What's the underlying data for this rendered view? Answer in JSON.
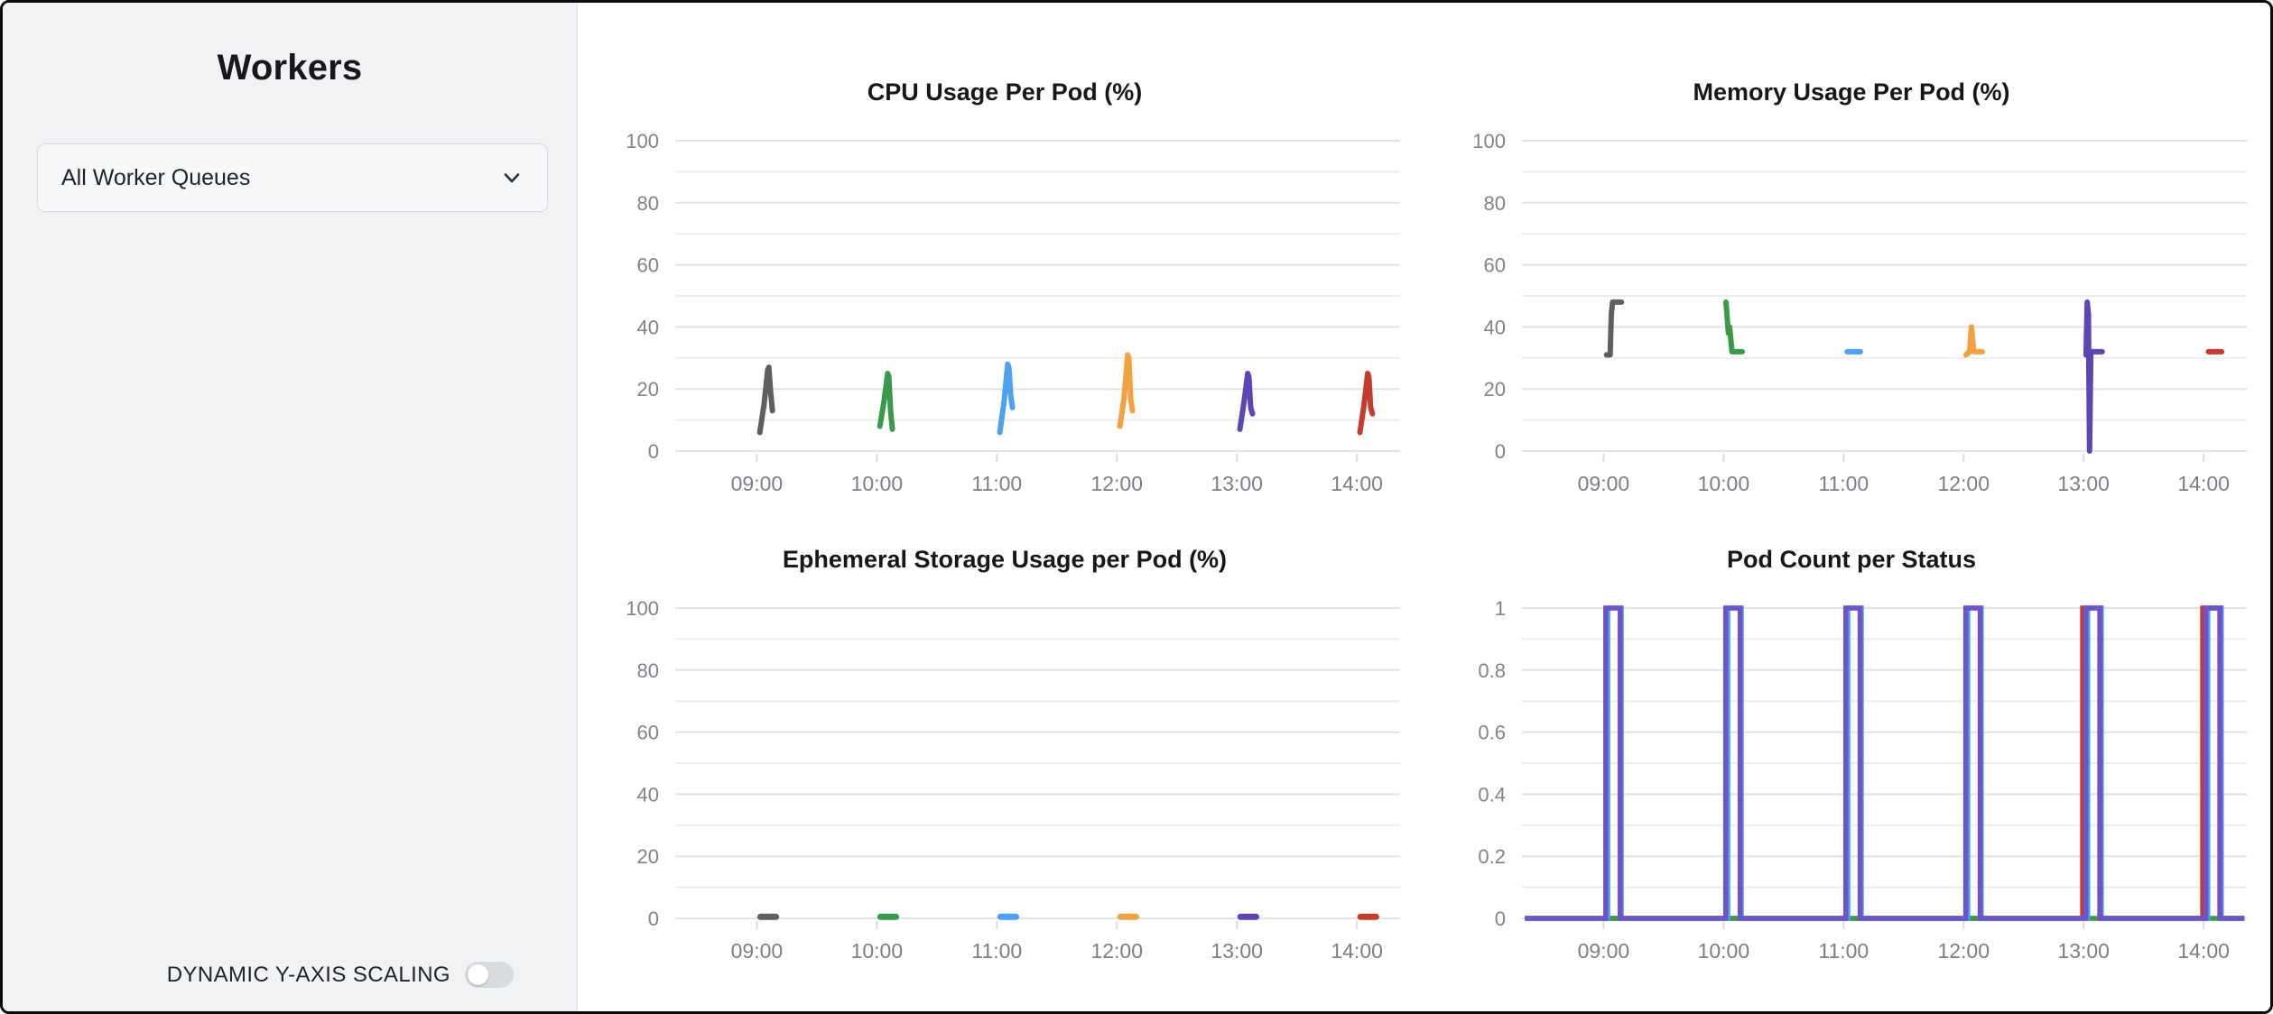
{
  "sidebar": {
    "title": "Workers",
    "queue_selector": {
      "value": "All Worker Queues",
      "icon": "chevron-down-icon"
    },
    "toggle": {
      "label": "DYNAMIC Y-AXIS SCALING",
      "state": "off"
    }
  },
  "colors": {
    "sidebar_bg": "#f1f2f4",
    "window_border": "#0a0a0a",
    "grid_major": "#e2e2e8",
    "grid_minor": "#ededf1",
    "tick_label": "#82838a",
    "title_text": "#15171b",
    "pod_gray": "#5e5f63",
    "pod_green": "#3a9a4a",
    "pod_blue": "#4aa2f0",
    "pod_orange": "#f0a243",
    "pod_purple": "#5d46b4",
    "pod_red": "#c43c2d",
    "status_purple": "#6d55c8"
  },
  "chart_data": [
    {
      "type": "line",
      "title": "CPU Usage Per Pod (%)",
      "ylim": [
        0,
        100
      ],
      "grid_step": 10,
      "y_ticks": [
        "0",
        "20",
        "40",
        "60",
        "80",
        "100"
      ],
      "x_domain": [
        8.32,
        14.36
      ],
      "x_tick_labels": [
        "09:00",
        "10:00",
        "11:00",
        "12:00",
        "13:00",
        "14:00"
      ],
      "x_tick_hours": [
        9,
        10,
        11,
        12,
        13,
        14
      ],
      "legend": "none",
      "series": [
        {
          "name": "pod-gray",
          "color": "#5e5f63",
          "width": 6,
          "sharp": false,
          "points": [
            [
              9.025,
              6
            ],
            [
              9.06,
              15
            ],
            [
              9.09,
              26
            ],
            [
              9.1,
              27
            ],
            [
              9.115,
              19
            ],
            [
              9.13,
              13
            ]
          ]
        },
        {
          "name": "pod-green",
          "color": "#3a9a4a",
          "width": 6,
          "sharp": false,
          "points": [
            [
              10.025,
              8
            ],
            [
              10.06,
              16
            ],
            [
              10.09,
              25
            ],
            [
              10.1,
              24
            ],
            [
              10.115,
              13
            ],
            [
              10.13,
              7
            ]
          ]
        },
        {
          "name": "pod-blue",
          "color": "#4aa2f0",
          "width": 6,
          "sharp": false,
          "points": [
            [
              11.025,
              6
            ],
            [
              11.06,
              16
            ],
            [
              11.09,
              28
            ],
            [
              11.1,
              27
            ],
            [
              11.115,
              18
            ],
            [
              11.13,
              14
            ]
          ]
        },
        {
          "name": "pod-orange",
          "color": "#f0a243",
          "width": 6,
          "sharp": false,
          "points": [
            [
              12.025,
              8
            ],
            [
              12.06,
              17
            ],
            [
              12.09,
              31
            ],
            [
              12.1,
              30
            ],
            [
              12.115,
              17
            ],
            [
              12.13,
              13
            ]
          ]
        },
        {
          "name": "pod-purple",
          "color": "#5d46b4",
          "width": 6,
          "sharp": false,
          "points": [
            [
              13.025,
              7
            ],
            [
              13.06,
              16
            ],
            [
              13.09,
              25
            ],
            [
              13.1,
              24
            ],
            [
              13.115,
              14
            ],
            [
              13.13,
              12
            ]
          ]
        },
        {
          "name": "pod-red",
          "color": "#c43c2d",
          "width": 6,
          "sharp": false,
          "points": [
            [
              14.025,
              6
            ],
            [
              14.06,
              15
            ],
            [
              14.09,
              25
            ],
            [
              14.1,
              24
            ],
            [
              14.115,
              14
            ],
            [
              14.13,
              12
            ]
          ]
        }
      ]
    },
    {
      "type": "line",
      "title": "Memory Usage Per Pod (%)",
      "ylim": [
        0,
        100
      ],
      "grid_step": 10,
      "y_ticks": [
        "0",
        "20",
        "40",
        "60",
        "80",
        "100"
      ],
      "x_domain": [
        8.32,
        14.36
      ],
      "x_tick_labels": [
        "09:00",
        "10:00",
        "11:00",
        "12:00",
        "13:00",
        "14:00"
      ],
      "x_tick_hours": [
        9,
        10,
        11,
        12,
        13,
        14
      ],
      "legend": "none",
      "series": [
        {
          "name": "pod-gray",
          "color": "#5e5f63",
          "width": 6,
          "sharp": false,
          "points": [
            [
              9.025,
              31
            ],
            [
              9.055,
              31
            ],
            [
              9.065,
              44
            ],
            [
              9.075,
              48
            ],
            [
              9.15,
              48
            ]
          ]
        },
        {
          "name": "pod-green",
          "color": "#3a9a4a",
          "width": 6,
          "sharp": false,
          "points": [
            [
              10.02,
              48
            ],
            [
              10.04,
              38
            ],
            [
              10.05,
              40
            ],
            [
              10.07,
              32
            ],
            [
              10.155,
              32
            ]
          ]
        },
        {
          "name": "pod-blue",
          "color": "#4aa2f0",
          "width": 6,
          "sharp": false,
          "points": [
            [
              11.03,
              32
            ],
            [
              11.14,
              32
            ]
          ]
        },
        {
          "name": "pod-orange",
          "color": "#f0a243",
          "width": 6,
          "sharp": false,
          "points": [
            [
              12.02,
              31
            ],
            [
              12.05,
              32
            ],
            [
              12.065,
              40
            ],
            [
              12.085,
              32
            ],
            [
              12.155,
              32
            ]
          ]
        },
        {
          "name": "pod-purple",
          "color": "#5d46b4",
          "width": 6,
          "sharp": false,
          "points": [
            [
              13.02,
              31
            ],
            [
              13.03,
              48
            ],
            [
              13.04,
              44
            ],
            [
              13.05,
              0
            ],
            [
              13.06,
              32
            ],
            [
              13.155,
              32
            ]
          ]
        },
        {
          "name": "pod-red",
          "color": "#c43c2d",
          "width": 6,
          "sharp": false,
          "points": [
            [
              14.04,
              32
            ],
            [
              14.15,
              32
            ]
          ]
        }
      ]
    },
    {
      "type": "line",
      "title": "Ephemeral Storage Usage per Pod (%)",
      "ylim": [
        0,
        100
      ],
      "grid_step": 10,
      "y_ticks": [
        "0",
        "20",
        "40",
        "60",
        "80",
        "100"
      ],
      "x_domain": [
        8.32,
        14.36
      ],
      "x_tick_labels": [
        "09:00",
        "10:00",
        "11:00",
        "12:00",
        "13:00",
        "14:00"
      ],
      "x_tick_hours": [
        9,
        10,
        11,
        12,
        13,
        14
      ],
      "legend": "none",
      "series": [
        {
          "name": "pod-gray",
          "color": "#5e5f63",
          "width": 7,
          "sharp": false,
          "points": [
            [
              9.03,
              0.5
            ],
            [
              9.16,
              0.5
            ]
          ]
        },
        {
          "name": "pod-green",
          "color": "#3a9a4a",
          "width": 7,
          "sharp": false,
          "points": [
            [
              10.03,
              0.5
            ],
            [
              10.16,
              0.5
            ]
          ]
        },
        {
          "name": "pod-blue",
          "color": "#4aa2f0",
          "width": 7,
          "sharp": false,
          "points": [
            [
              11.03,
              0.5
            ],
            [
              11.16,
              0.5
            ]
          ]
        },
        {
          "name": "pod-orange",
          "color": "#f0a243",
          "width": 7,
          "sharp": false,
          "points": [
            [
              12.03,
              0.5
            ],
            [
              12.16,
              0.5
            ]
          ]
        },
        {
          "name": "pod-purple",
          "color": "#5d46b4",
          "width": 7,
          "sharp": false,
          "points": [
            [
              13.03,
              0.5
            ],
            [
              13.16,
              0.5
            ]
          ]
        },
        {
          "name": "pod-red",
          "color": "#c43c2d",
          "width": 7,
          "sharp": false,
          "points": [
            [
              14.03,
              0.5
            ],
            [
              14.16,
              0.5
            ]
          ]
        }
      ]
    },
    {
      "type": "line",
      "title": "Pod Count per Status",
      "ylim": [
        0,
        1
      ],
      "grid_step": 0.1,
      "y_ticks": [
        "0",
        "0.2",
        "0.4",
        "0.6",
        "0.8",
        "1"
      ],
      "x_domain": [
        8.32,
        14.36
      ],
      "x_tick_labels": [
        "09:00",
        "10:00",
        "11:00",
        "12:00",
        "13:00",
        "14:00"
      ],
      "x_tick_hours": [
        9,
        10,
        11,
        12,
        13,
        14
      ],
      "legend": "none",
      "series": [
        {
          "name": "status-red",
          "color": "#c43c2d",
          "width": 5.5,
          "sharp": true,
          "points": [
            [
              8.345,
              0
            ],
            [
              12.992,
              0
            ],
            [
              12.992,
              1
            ],
            [
              13.135,
              1
            ],
            [
              13.135,
              0
            ],
            [
              13.992,
              0
            ],
            [
              13.992,
              1
            ],
            [
              14.135,
              1
            ],
            [
              14.135,
              0
            ],
            [
              14.34,
              0
            ]
          ]
        },
        {
          "name": "status-green",
          "color": "#3a9a4a",
          "width": 5.5,
          "sharp": true,
          "points": [
            [
              8.345,
              0
            ],
            [
              14.34,
              0
            ]
          ]
        },
        {
          "name": "status-blue",
          "color": "#4aa2f0",
          "width": 5.5,
          "sharp": true,
          "points": [
            [
              8.345,
              0
            ],
            [
              9.035,
              0
            ],
            [
              9.035,
              1
            ],
            [
              9.148,
              1
            ],
            [
              9.148,
              0
            ],
            [
              10.035,
              0
            ],
            [
              10.035,
              1
            ],
            [
              10.148,
              1
            ],
            [
              10.148,
              0
            ],
            [
              11.035,
              0
            ],
            [
              11.035,
              1
            ],
            [
              11.148,
              1
            ],
            [
              11.148,
              0
            ],
            [
              12.035,
              0
            ],
            [
              12.035,
              1
            ],
            [
              12.148,
              1
            ],
            [
              12.148,
              0
            ],
            [
              13.035,
              0
            ],
            [
              13.035,
              1
            ],
            [
              13.148,
              1
            ],
            [
              13.148,
              0
            ],
            [
              14.035,
              0
            ],
            [
              14.035,
              1
            ],
            [
              14.148,
              1
            ],
            [
              14.148,
              0
            ],
            [
              14.34,
              0
            ]
          ]
        },
        {
          "name": "status-purple",
          "color": "#6d55c8",
          "width": 5.5,
          "sharp": true,
          "points": [
            [
              8.345,
              0
            ],
            [
              9.018,
              0
            ],
            [
              9.018,
              1
            ],
            [
              9.138,
              1
            ],
            [
              9.138,
              0
            ],
            [
              10.018,
              0
            ],
            [
              10.018,
              1
            ],
            [
              10.138,
              1
            ],
            [
              10.138,
              0
            ],
            [
              11.018,
              0
            ],
            [
              11.018,
              1
            ],
            [
              11.138,
              1
            ],
            [
              11.138,
              0
            ],
            [
              12.018,
              0
            ],
            [
              12.018,
              1
            ],
            [
              12.138,
              1
            ],
            [
              12.138,
              0
            ],
            [
              13.018,
              0
            ],
            [
              13.018,
              1
            ],
            [
              13.138,
              1
            ],
            [
              13.138,
              0
            ],
            [
              14.018,
              0
            ],
            [
              14.018,
              1
            ],
            [
              14.138,
              1
            ],
            [
              14.138,
              0
            ],
            [
              14.34,
              0
            ]
          ]
        }
      ]
    }
  ]
}
